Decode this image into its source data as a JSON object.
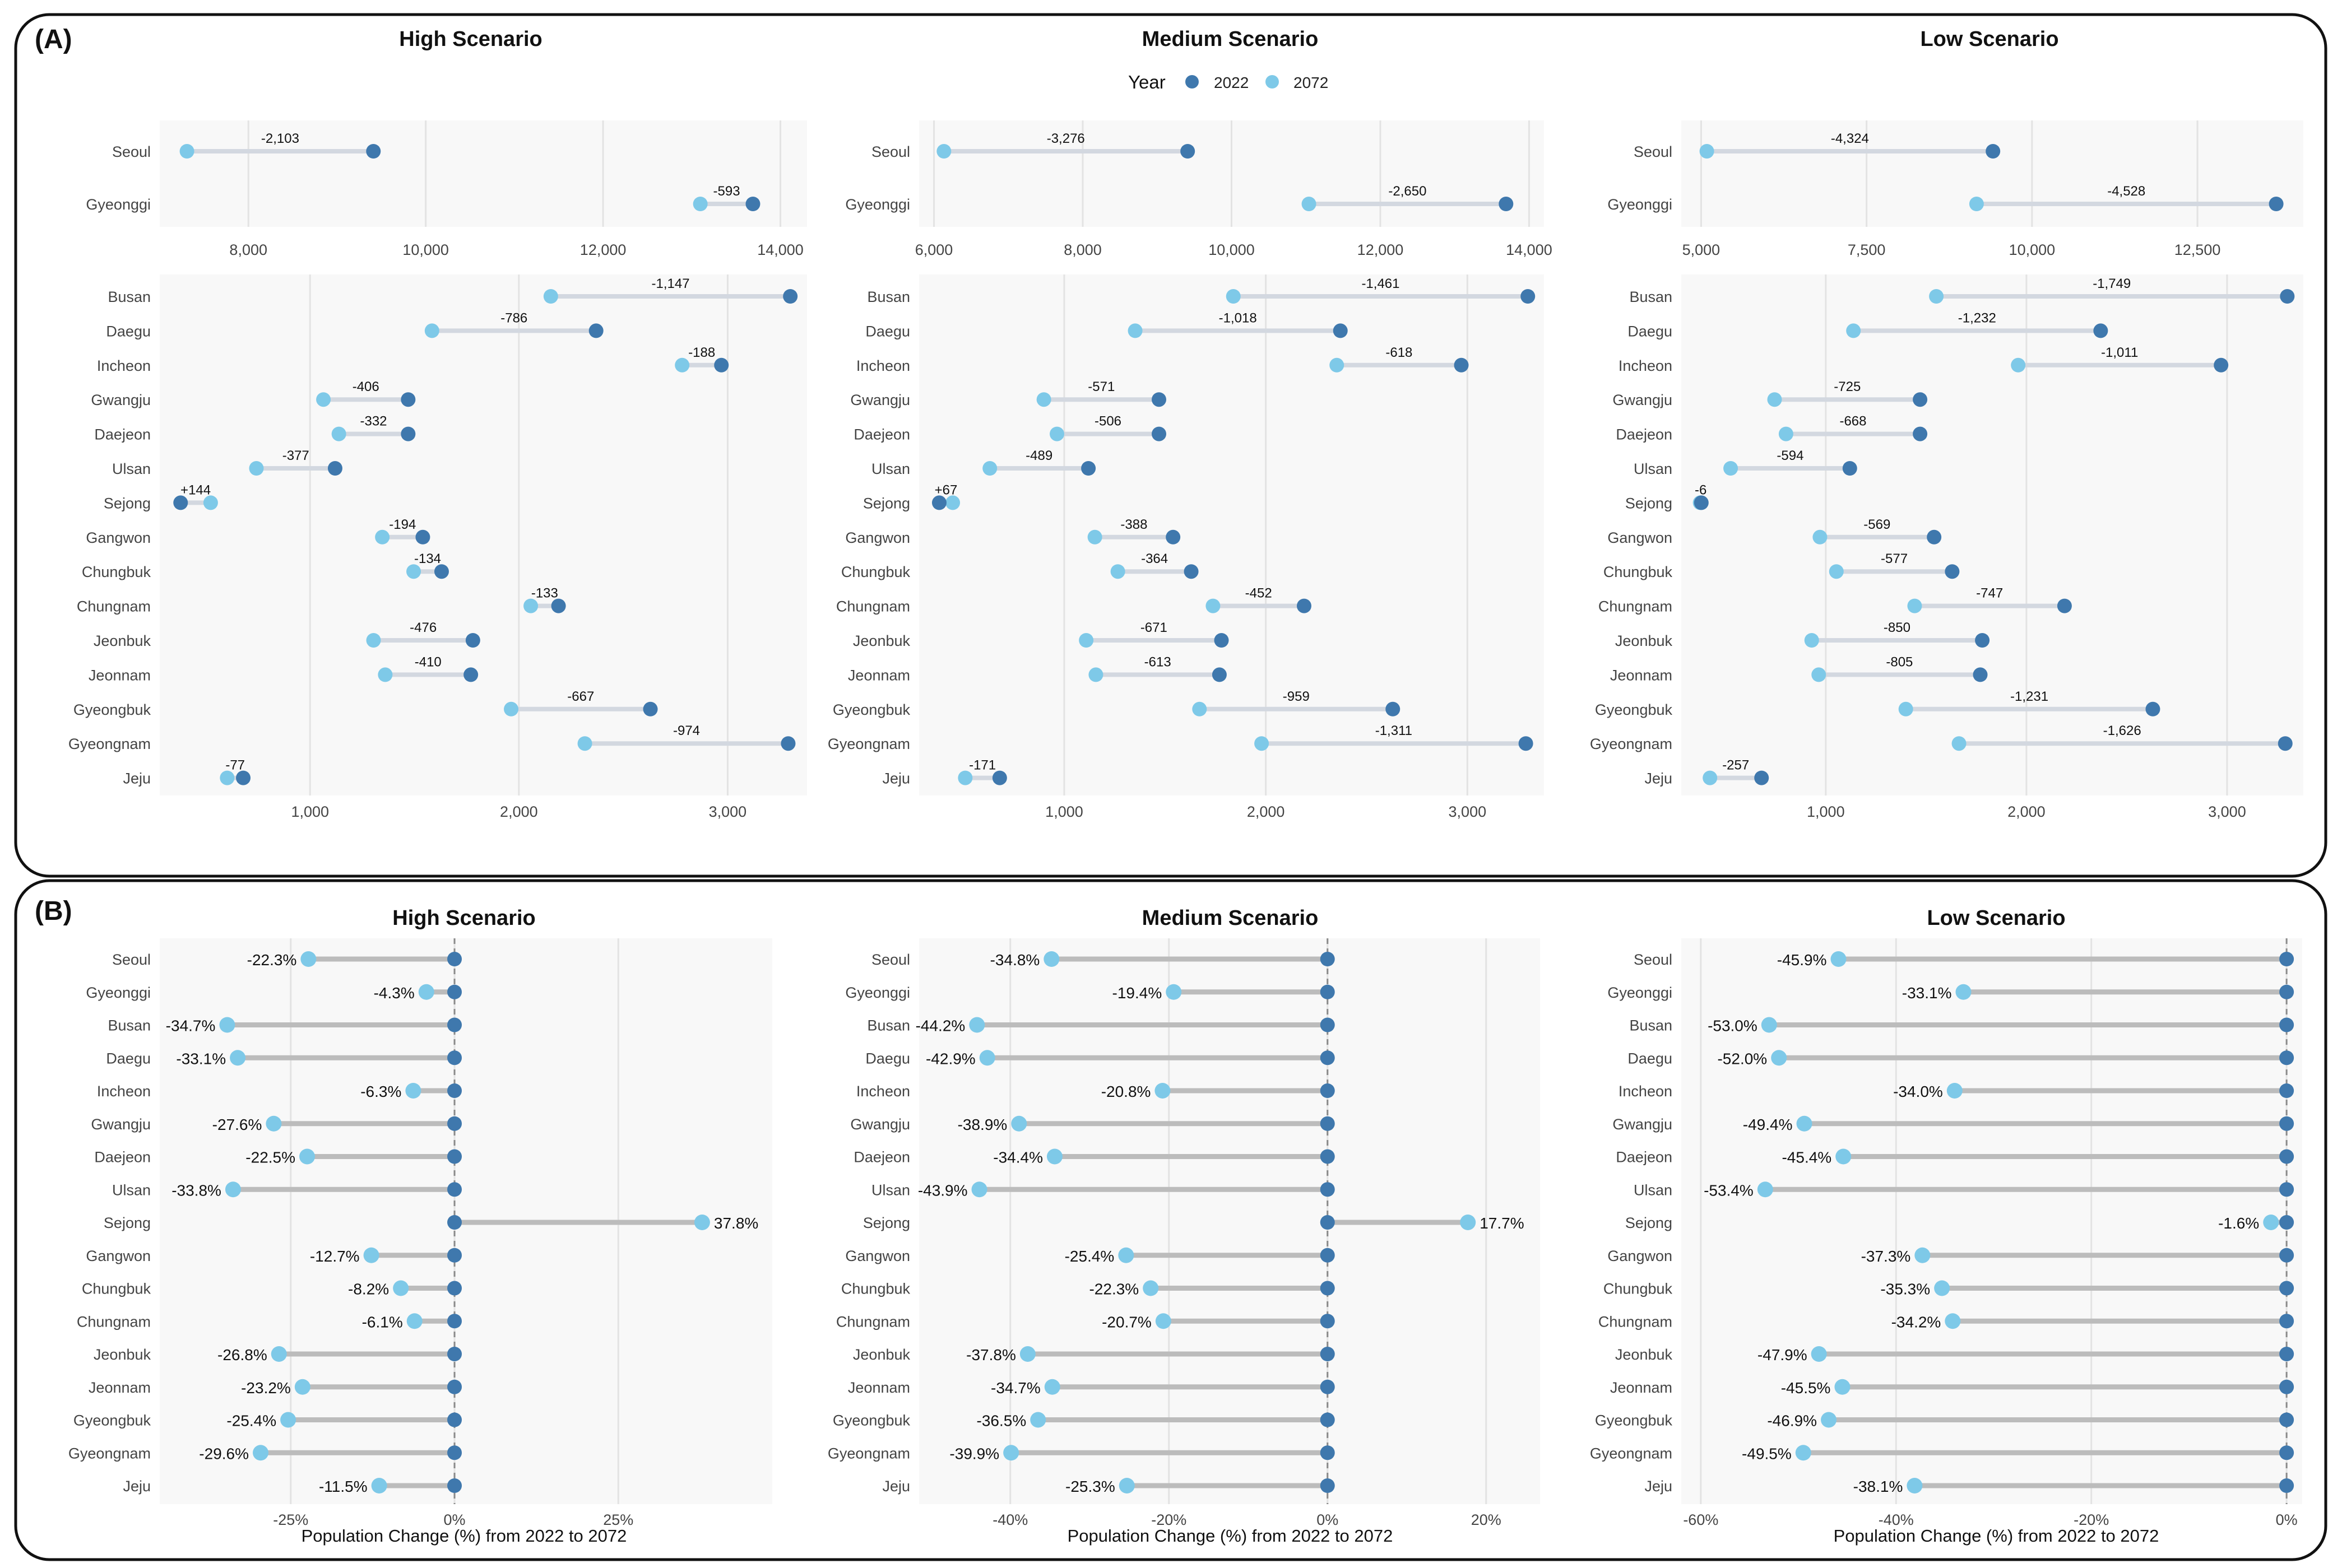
{
  "figure": {
    "panel_a_label": "(A)",
    "panel_b_label": "(B)",
    "legend": {
      "title": "Year",
      "items": [
        "2022",
        "2072"
      ]
    },
    "colors": {
      "y2022": "#3f78ad",
      "y2072": "#7ec9e8",
      "bar_a": "#d3d8e0",
      "bar_b": "#bcbcbc",
      "grid": "#e3e3e3",
      "panel_bg": "#f8f8f8"
    },
    "scenario_titles": [
      "High Scenario",
      "Medium Scenario",
      "Low Scenario"
    ],
    "b_xlabel": "Population Change (%) from 2022 to 2072"
  },
  "chart_data": [
    {
      "type": "dumbbell",
      "panel": "A-top",
      "scenario": "High Scenario",
      "categories": [
        "Seoul",
        "Gyeonggi"
      ],
      "series": [
        {
          "name": "2022",
          "values": [
            9410,
            13690
          ]
        },
        {
          "name": "2072",
          "values": [
            7307,
            13097
          ]
        }
      ],
      "labels": [
        "-2,103",
        "-593"
      ],
      "xlim": [
        7000,
        14300
      ],
      "xticks": [
        8000,
        10000,
        12000,
        14000
      ],
      "xtick_labels": [
        "8,000",
        "10,000",
        "12,000",
        "14,000"
      ]
    },
    {
      "type": "dumbbell",
      "panel": "A-top",
      "scenario": "Medium Scenario",
      "categories": [
        "Seoul",
        "Gyeonggi"
      ],
      "series": [
        {
          "name": "2022",
          "values": [
            9410,
            13690
          ]
        },
        {
          "name": "2072",
          "values": [
            6134,
            11040
          ]
        }
      ],
      "labels": [
        "-3,276",
        "-2,650"
      ],
      "xlim": [
        5800,
        14200
      ],
      "xticks": [
        6000,
        8000,
        10000,
        12000,
        14000
      ],
      "xtick_labels": [
        "6,000",
        "8,000",
        "10,000",
        "12,000",
        "14,000"
      ]
    },
    {
      "type": "dumbbell",
      "panel": "A-top",
      "scenario": "Low Scenario",
      "categories": [
        "Seoul",
        "Gyeonggi"
      ],
      "series": [
        {
          "name": "2022",
          "values": [
            9410,
            13690
          ]
        },
        {
          "name": "2072",
          "values": [
            5086,
            9162
          ]
        }
      ],
      "labels": [
        "-4,324",
        "-4,528"
      ],
      "xlim": [
        4700,
        14100
      ],
      "xticks": [
        5000,
        7500,
        10000,
        12500
      ],
      "xtick_labels": [
        "5,000",
        "7,500",
        "10,000",
        "12,500"
      ]
    },
    {
      "type": "dumbbell",
      "panel": "A-bottom",
      "scenario": "High Scenario",
      "categories": [
        "Busan",
        "Daegu",
        "Incheon",
        "Gwangju",
        "Daejeon",
        "Ulsan",
        "Sejong",
        "Gangwon",
        "Chungbuk",
        "Chungnam",
        "Jeonbuk",
        "Jeonnam",
        "Gyeongbuk",
        "Gyeongnam",
        "Jeju"
      ],
      "series": [
        {
          "name": "2022",
          "values": [
            3300,
            2370,
            2970,
            1470,
            1470,
            1120,
            380,
            1540,
            1630,
            2190,
            1780,
            1770,
            2630,
            3290,
            680
          ]
        },
        {
          "name": "2072",
          "values": [
            2153,
            1584,
            2782,
            1064,
            1138,
            743,
            524,
            1346,
            1496,
            2057,
            1304,
            1360,
            1963,
            2316,
            603
          ]
        }
      ],
      "labels": [
        "-1,147",
        "-786",
        "-188",
        "-406",
        "-332",
        "-377",
        "+144",
        "-194",
        "-134",
        "-133",
        "-476",
        "-410",
        "-667",
        "-974",
        "-77"
      ],
      "xlim": [
        280,
        3380
      ],
      "xticks": [
        1000,
        2000,
        3000
      ],
      "xtick_labels": [
        "1,000",
        "2,000",
        "3,000"
      ]
    },
    {
      "type": "dumbbell",
      "panel": "A-bottom",
      "scenario": "Medium Scenario",
      "categories": [
        "Busan",
        "Daegu",
        "Incheon",
        "Gwangju",
        "Daejeon",
        "Ulsan",
        "Sejong",
        "Gangwon",
        "Chungbuk",
        "Chungnam",
        "Jeonbuk",
        "Jeonnam",
        "Gyeongbuk",
        "Gyeongnam",
        "Jeju"
      ],
      "series": [
        {
          "name": "2022",
          "values": [
            3300,
            2370,
            2970,
            1470,
            1470,
            1120,
            380,
            1540,
            1630,
            2190,
            1780,
            1770,
            2630,
            3290,
            680
          ]
        },
        {
          "name": "2072",
          "values": [
            1839,
            1352,
            2352,
            899,
            964,
            631,
            447,
            1152,
            1266,
            1738,
            1109,
            1157,
            1671,
            1979,
            509
          ]
        }
      ],
      "labels": [
        "-1,461",
        "-1,018",
        "-618",
        "-571",
        "-506",
        "-489",
        "+67",
        "-388",
        "-364",
        "-452",
        "-671",
        "-613",
        "-959",
        "-1,311",
        "-171"
      ],
      "xlim": [
        280,
        3380
      ],
      "xticks": [
        1000,
        2000,
        3000
      ],
      "xtick_labels": [
        "1,000",
        "2,000",
        "3,000"
      ]
    },
    {
      "type": "dumbbell",
      "panel": "A-bottom",
      "scenario": "Low Scenario",
      "categories": [
        "Busan",
        "Daegu",
        "Incheon",
        "Gwangju",
        "Daejeon",
        "Ulsan",
        "Sejong",
        "Gangwon",
        "Chungbuk",
        "Chungnam",
        "Jeonbuk",
        "Jeonnam",
        "Gyeongbuk",
        "Gyeongnam",
        "Jeju"
      ],
      "series": [
        {
          "name": "2022",
          "values": [
            3300,
            2370,
            2970,
            1470,
            1470,
            1120,
            380,
            1540,
            1630,
            2190,
            1780,
            1770,
            2630,
            3290,
            680
          ]
        },
        {
          "name": "2072",
          "values": [
            1551,
            1138,
            1959,
            745,
            802,
            526,
            374,
            971,
            1053,
            1443,
            930,
            965,
            1399,
            1664,
            423
          ]
        }
      ],
      "labels": [
        "-1,749",
        "-1,232",
        "-1,011",
        "-725",
        "-668",
        "-594",
        "-6",
        "-569",
        "-577",
        "-747",
        "-850",
        "-805",
        "-1,231",
        "-1,626",
        "-257"
      ],
      "xlim": [
        280,
        3380
      ],
      "xticks": [
        1000,
        2000,
        3000
      ],
      "xtick_labels": [
        "1,000",
        "2,000",
        "3,000"
      ]
    },
    {
      "type": "dumbbell",
      "panel": "B",
      "scenario": "High Scenario",
      "xlabel": "Population Change (%) from 2022 to 2072",
      "categories": [
        "Seoul",
        "Gyeonggi",
        "Busan",
        "Daegu",
        "Incheon",
        "Gwangju",
        "Daejeon",
        "Ulsan",
        "Sejong",
        "Gangwon",
        "Chungbuk",
        "Chungnam",
        "Jeonbuk",
        "Jeonnam",
        "Gyeongbuk",
        "Gyeongnam",
        "Jeju"
      ],
      "series": [
        {
          "name": "2022",
          "values": [
            0,
            0,
            0,
            0,
            0,
            0,
            0,
            0,
            0,
            0,
            0,
            0,
            0,
            0,
            0,
            0,
            0
          ]
        },
        {
          "name": "2072",
          "values": [
            -22.3,
            -4.3,
            -34.7,
            -33.1,
            -6.3,
            -27.6,
            -22.5,
            -33.8,
            37.8,
            -12.7,
            -8.2,
            -6.1,
            -26.8,
            -23.2,
            -25.4,
            -29.6,
            -11.5
          ]
        }
      ],
      "labels": [
        "-22.3%",
        "-4.3%",
        "-34.7%",
        "-33.1%",
        "-6.3%",
        "-27.6%",
        "-22.5%",
        "-33.8%",
        "37.8%",
        "-12.7%",
        "-8.2%",
        "-6.1%",
        "-26.8%",
        "-23.2%",
        "-25.4%",
        "-29.6%",
        "-11.5%"
      ],
      "xlim": [
        -45,
        48.5
      ],
      "xticks": [
        -25,
        0,
        25
      ],
      "xtick_labels": [
        "-25%",
        "0%",
        "25%"
      ]
    },
    {
      "type": "dumbbell",
      "panel": "B",
      "scenario": "Medium Scenario",
      "xlabel": "Population Change (%) from 2022 to 2072",
      "categories": [
        "Seoul",
        "Gyeonggi",
        "Busan",
        "Daegu",
        "Incheon",
        "Gwangju",
        "Daejeon",
        "Ulsan",
        "Sejong",
        "Gangwon",
        "Chungbuk",
        "Chungnam",
        "Jeonbuk",
        "Jeonnam",
        "Gyeongbuk",
        "Gyeongnam",
        "Jeju"
      ],
      "series": [
        {
          "name": "2022",
          "values": [
            0,
            0,
            0,
            0,
            0,
            0,
            0,
            0,
            0,
            0,
            0,
            0,
            0,
            0,
            0,
            0,
            0
          ]
        },
        {
          "name": "2072",
          "values": [
            -34.8,
            -19.4,
            -44.2,
            -42.9,
            -20.8,
            -38.9,
            -34.4,
            -43.9,
            17.7,
            -25.4,
            -22.3,
            -20.7,
            -37.8,
            -34.7,
            -36.5,
            -39.9,
            -25.3
          ]
        }
      ],
      "labels": [
        "-34.8%",
        "-19.4%",
        "-44.2%",
        "-42.9%",
        "-20.8%",
        "-38.9%",
        "-34.4%",
        "-43.9%",
        "17.7%",
        "-25.4%",
        "-22.3%",
        "-20.7%",
        "-37.8%",
        "-34.7%",
        "-36.5%",
        "-39.9%",
        "-25.3%"
      ],
      "xlim": [
        -51.5,
        26.8
      ],
      "xticks": [
        -40,
        -20,
        0,
        20
      ],
      "xtick_labels": [
        "-40%",
        "-20%",
        "0%",
        "20%"
      ]
    },
    {
      "type": "dumbbell",
      "panel": "B",
      "scenario": "Low Scenario",
      "xlabel": "Population Change (%) from 2022 to 2072",
      "categories": [
        "Seoul",
        "Gyeonggi",
        "Busan",
        "Daegu",
        "Incheon",
        "Gwangju",
        "Daejeon",
        "Ulsan",
        "Sejong",
        "Gangwon",
        "Chungbuk",
        "Chungnam",
        "Jeonbuk",
        "Jeonnam",
        "Gyeongbuk",
        "Gyeongnam",
        "Jeju"
      ],
      "series": [
        {
          "name": "2022",
          "values": [
            0,
            0,
            0,
            0,
            0,
            0,
            0,
            0,
            0,
            0,
            0,
            0,
            0,
            0,
            0,
            0,
            0
          ]
        },
        {
          "name": "2072",
          "values": [
            -45.9,
            -33.1,
            -53.0,
            -52.0,
            -34.0,
            -49.4,
            -45.4,
            -53.4,
            -1.6,
            -37.3,
            -35.3,
            -34.2,
            -47.9,
            -45.5,
            -46.9,
            -49.5,
            -38.1
          ]
        }
      ],
      "labels": [
        "-45.9%",
        "-33.1%",
        "-53.0%",
        "-52.0%",
        "-34.0%",
        "-49.4%",
        "-45.4%",
        "-53.4%",
        "-1.6%",
        "-37.3%",
        "-35.3%",
        "-34.2%",
        "-47.9%",
        "-45.5%",
        "-46.9%",
        "-49.5%",
        "-38.1%"
      ],
      "xlim": [
        -62,
        1.6
      ],
      "xticks": [
        -60,
        -40,
        -20,
        0
      ],
      "xtick_labels": [
        "-60%",
        "-40%",
        "-20%",
        "0%"
      ]
    }
  ]
}
